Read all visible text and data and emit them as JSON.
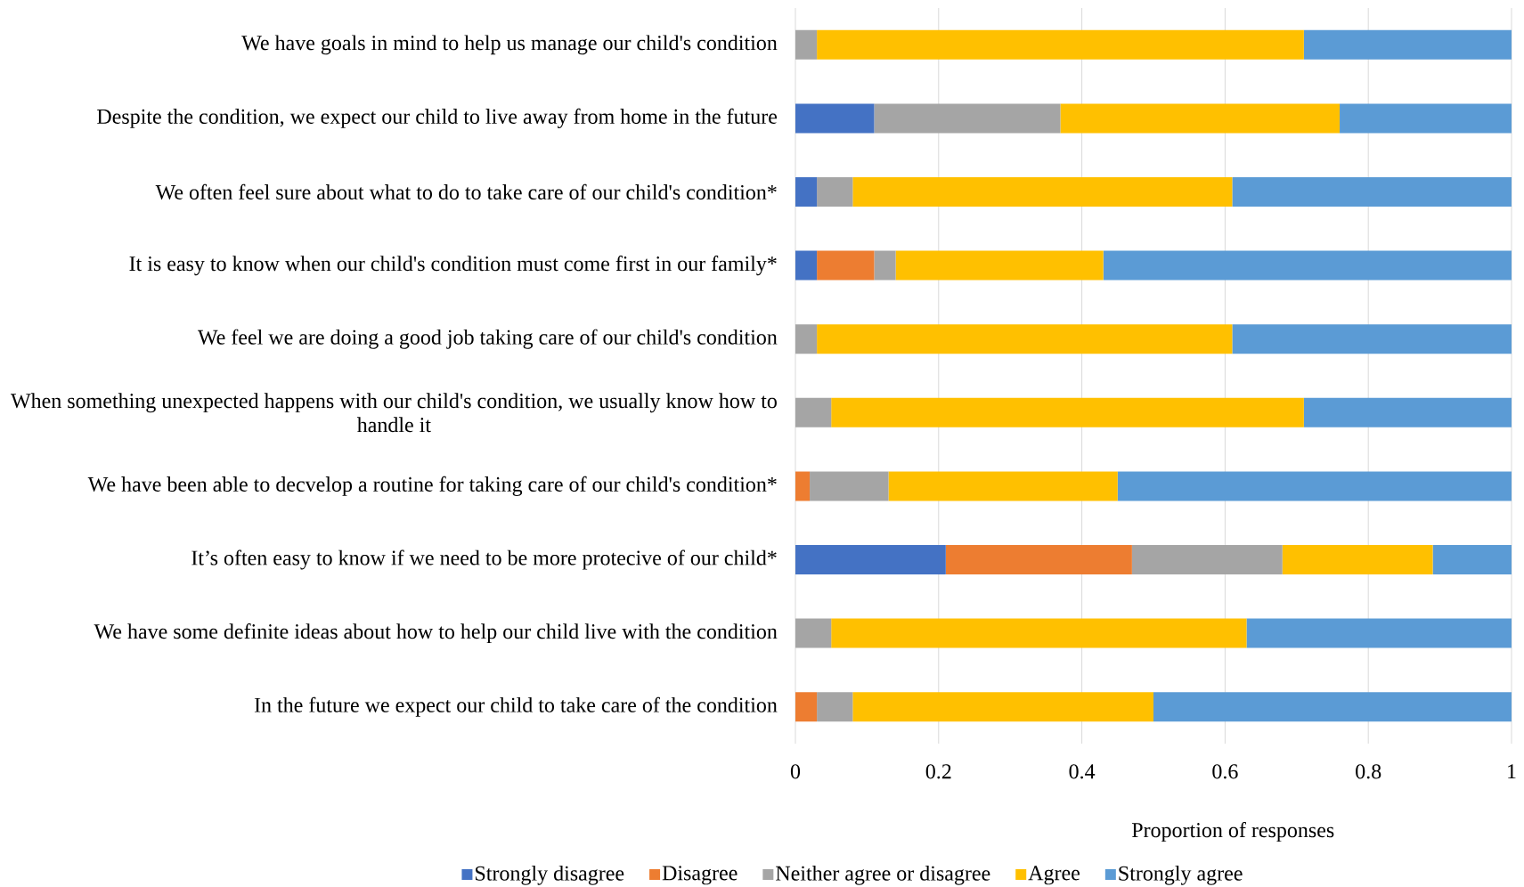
{
  "chart_data": {
    "type": "bar",
    "orientation": "horizontal",
    "stacked": true,
    "categories": [
      "We have goals in mind to help us manage our child's condition",
      "Despite the condition, we expect our child to live away from home in the future",
      "We often feel sure about what to do to take care of our child's condition*",
      "It is easy to know when our child's condition must come first in our family*",
      "We feel we are doing a good job taking care of our child's condition",
      "When something unexpected happens with our child's condition, we usually know how to handle it",
      "We have been able to decvelop a routine for taking care of our child's condition*",
      "It’s often easy to know if we need to be more protecive of our child*",
      "We have some definite ideas about how to help our child live with the condition",
      "In the future we expect our child to take care of the condition"
    ],
    "series": [
      {
        "name": "Strongly disagree",
        "color": "#4472c4",
        "values": [
          0,
          0.11,
          0.03,
          0.03,
          0,
          0,
          0,
          0.21,
          0,
          0
        ]
      },
      {
        "name": "Disagree",
        "color": "#ed7d31",
        "values": [
          0,
          0,
          0,
          0.08,
          0,
          0,
          0.02,
          0.26,
          0,
          0.03
        ]
      },
      {
        "name": "Neither agree or disagree",
        "color": "#a5a5a5",
        "values": [
          0.03,
          0.26,
          0.05,
          0.03,
          0.03,
          0.05,
          0.11,
          0.21,
          0.05,
          0.05
        ]
      },
      {
        "name": "Agree",
        "color": "#ffc000",
        "values": [
          0.68,
          0.39,
          0.53,
          0.29,
          0.58,
          0.66,
          0.32,
          0.21,
          0.58,
          0.42
        ]
      },
      {
        "name": "Strongly agree",
        "color": "#5b9bd5",
        "values": [
          0.29,
          0.24,
          0.39,
          0.57,
          0.39,
          0.29,
          0.55,
          0.11,
          0.37,
          0.5
        ]
      }
    ],
    "xlabel": "Proportion of responses",
    "xlim": [
      0,
      1
    ],
    "xticks": [
      0,
      0.2,
      0.4,
      0.6,
      0.8,
      1
    ],
    "grid": "x",
    "legend": "bottom"
  }
}
